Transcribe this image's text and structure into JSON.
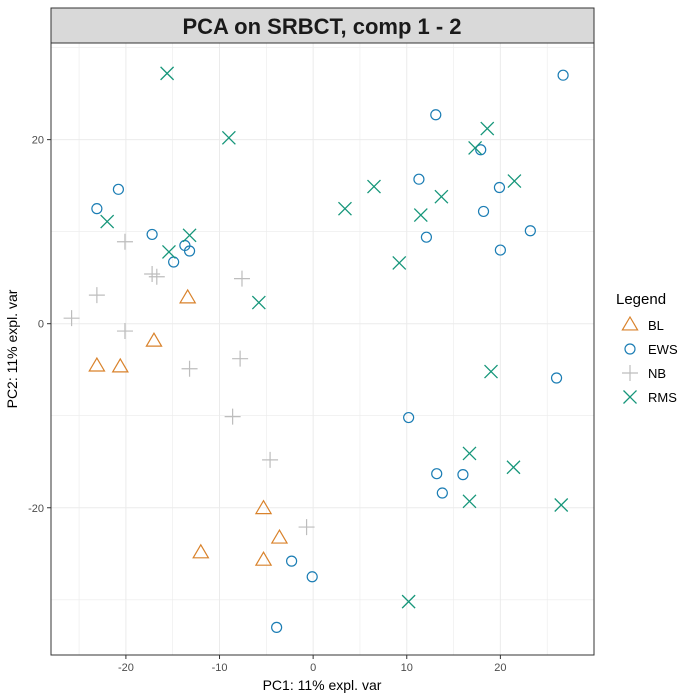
{
  "chart_data": {
    "type": "scatter",
    "title": "PCA on SRBCT, comp 1 - 2",
    "xlabel": "PC1: 11% expl. var",
    "ylabel": "PC2: 11% expl. var",
    "xlim": [
      -28,
      30
    ],
    "ylim": [
      -36,
      30.5
    ],
    "xticks": [
      -20,
      -10,
      0,
      10,
      20
    ],
    "yticks": [
      -20,
      0,
      20
    ],
    "grid": true,
    "legend_title": "Legend",
    "legend_position": "right",
    "series": [
      {
        "name": "BL",
        "marker": "triangle",
        "color": "#D9822B",
        "points": [
          [
            -13.4,
            2.8
          ],
          [
            -17,
            -1.9
          ],
          [
            -23.1,
            -4.6
          ],
          [
            -20.6,
            -4.7
          ],
          [
            -5.3,
            -20.1
          ],
          [
            -3.6,
            -23.3
          ],
          [
            -12,
            -24.9
          ],
          [
            -5.3,
            -25.7
          ]
        ]
      },
      {
        "name": "EWS",
        "marker": "circle",
        "color": "#1B7DB4",
        "points": [
          [
            26.7,
            27
          ],
          [
            13.1,
            22.7
          ],
          [
            17.9,
            18.9
          ],
          [
            11.3,
            15.7
          ],
          [
            19.9,
            14.8
          ],
          [
            -23.1,
            12.5
          ],
          [
            -20.8,
            14.6
          ],
          [
            18.2,
            12.2
          ],
          [
            23.2,
            10.1
          ],
          [
            -17.2,
            9.7
          ],
          [
            12.1,
            9.4
          ],
          [
            -13.7,
            8.5
          ],
          [
            -13.2,
            7.9
          ],
          [
            20,
            8
          ],
          [
            -14.9,
            6.7
          ],
          [
            26,
            -5.9
          ],
          [
            10.2,
            -10.2
          ],
          [
            13.2,
            -16.3
          ],
          [
            16,
            -16.4
          ],
          [
            13.8,
            -18.4
          ],
          [
            -2.3,
            -25.8
          ],
          [
            -0.1,
            -27.5
          ],
          [
            -3.9,
            -33
          ]
        ]
      },
      {
        "name": "NB",
        "marker": "plus",
        "color": "#BDBDBD",
        "points": [
          [
            -20.1,
            8.9
          ],
          [
            -17.2,
            5.4
          ],
          [
            -16.7,
            5.1
          ],
          [
            -7.6,
            4.9
          ],
          [
            -23.1,
            3.1
          ],
          [
            -25.8,
            0.6
          ],
          [
            -20.1,
            -0.8
          ],
          [
            -7.8,
            -3.8
          ],
          [
            -13.2,
            -4.9
          ],
          [
            -8.6,
            -10.1
          ],
          [
            -4.6,
            -14.8
          ],
          [
            -0.7,
            -22.1
          ]
        ]
      },
      {
        "name": "RMS",
        "marker": "cross",
        "color": "#16967A",
        "points": [
          [
            -15.6,
            27.2
          ],
          [
            -9,
            20.2
          ],
          [
            18.6,
            21.2
          ],
          [
            17.3,
            19.1
          ],
          [
            21.5,
            15.5
          ],
          [
            6.5,
            14.9
          ],
          [
            13.7,
            13.8
          ],
          [
            3.4,
            12.5
          ],
          [
            11.5,
            11.8
          ],
          [
            -22,
            11.1
          ],
          [
            -13.2,
            9.6
          ],
          [
            -15.4,
            7.8
          ],
          [
            9.2,
            6.6
          ],
          [
            -5.8,
            2.3
          ],
          [
            19,
            -5.2
          ],
          [
            16.7,
            -14.1
          ],
          [
            21.4,
            -15.6
          ],
          [
            16.7,
            -19.3
          ],
          [
            26.5,
            -19.7
          ],
          [
            10.2,
            -30.2
          ]
        ]
      }
    ]
  }
}
